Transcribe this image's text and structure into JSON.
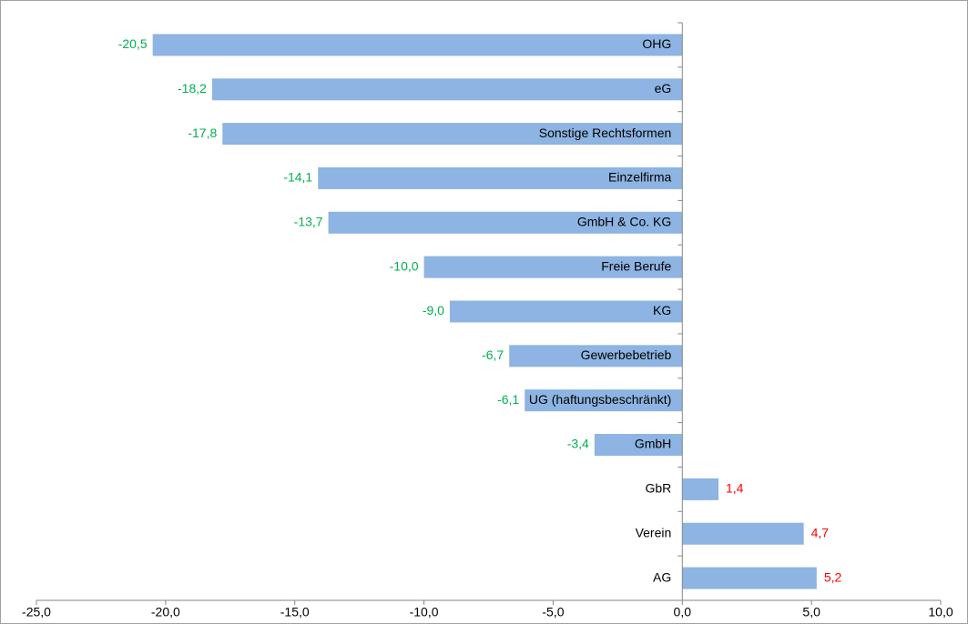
{
  "chart_data": {
    "type": "hbar",
    "categories": [
      "OHG",
      "eG",
      "Sonstige Rechtsformen",
      "Einzelfirma",
      "GmbH & Co. KG",
      "Freie Berufe",
      "KG",
      "Gewerbebetrieb",
      "UG (haftungsbeschränkt)",
      "GmbH",
      "GbR",
      "Verein",
      "AG"
    ],
    "values": [
      -20.5,
      -18.2,
      -17.8,
      -14.1,
      -13.7,
      -10.0,
      -9.0,
      -6.7,
      -6.1,
      -3.4,
      1.4,
      4.7,
      5.2
    ],
    "value_labels": [
      "-20,5",
      "-18,2",
      "-17,8",
      "-14,1",
      "-13,7",
      "-10,0",
      "-9,0",
      "-6,7",
      "-6,1",
      "-3,4",
      "1,4",
      "4,7",
      "5,2"
    ],
    "color": "#8db4e2",
    "label_colors": {
      "negative": "#00b050",
      "positive": "#ff0000"
    },
    "xlim": [
      -25,
      10
    ],
    "xticks": [
      {
        "value": -25,
        "label": "-25,0"
      },
      {
        "value": -20,
        "label": "-20,0"
      },
      {
        "value": -15,
        "label": "-15,0"
      },
      {
        "value": -10,
        "label": "-10,0"
      },
      {
        "value": -5,
        "label": "-5,0"
      },
      {
        "value": 0,
        "label": "0,0"
      },
      {
        "value": 5,
        "label": "5,0"
      },
      {
        "value": 10,
        "label": "10,0"
      }
    ],
    "grid": false
  }
}
